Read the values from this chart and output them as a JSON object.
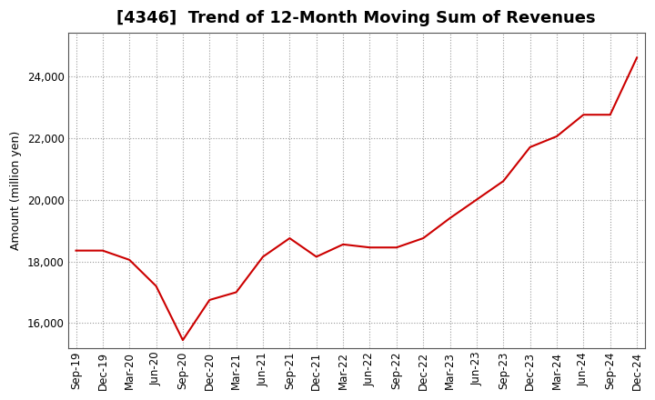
{
  "title": "[4346]  Trend of 12-Month Moving Sum of Revenues",
  "ylabel": "Amount (million yen)",
  "line_color": "#cc0000",
  "background_color": "#ffffff",
  "plot_bg_color": "#ffffff",
  "grid_color": "#999999",
  "x_labels": [
    "Sep-19",
    "Dec-19",
    "Mar-20",
    "Jun-20",
    "Sep-20",
    "Dec-20",
    "Mar-21",
    "Jun-21",
    "Sep-21",
    "Dec-21",
    "Mar-22",
    "Jun-22",
    "Sep-22",
    "Dec-22",
    "Mar-23",
    "Jun-23",
    "Sep-23",
    "Dec-23",
    "Mar-24",
    "Jun-24",
    "Sep-24",
    "Dec-24"
  ],
  "values": [
    18350,
    18350,
    18050,
    17200,
    15450,
    16750,
    17000,
    18150,
    18750,
    18150,
    18550,
    18450,
    18450,
    18750,
    19400,
    20000,
    20600,
    21700,
    22050,
    22750,
    22750,
    24600
  ],
  "ylim": [
    15200,
    25400
  ],
  "yticks": [
    16000,
    18000,
    20000,
    22000,
    24000
  ],
  "title_fontsize": 13,
  "label_fontsize": 9,
  "tick_fontsize": 8.5
}
